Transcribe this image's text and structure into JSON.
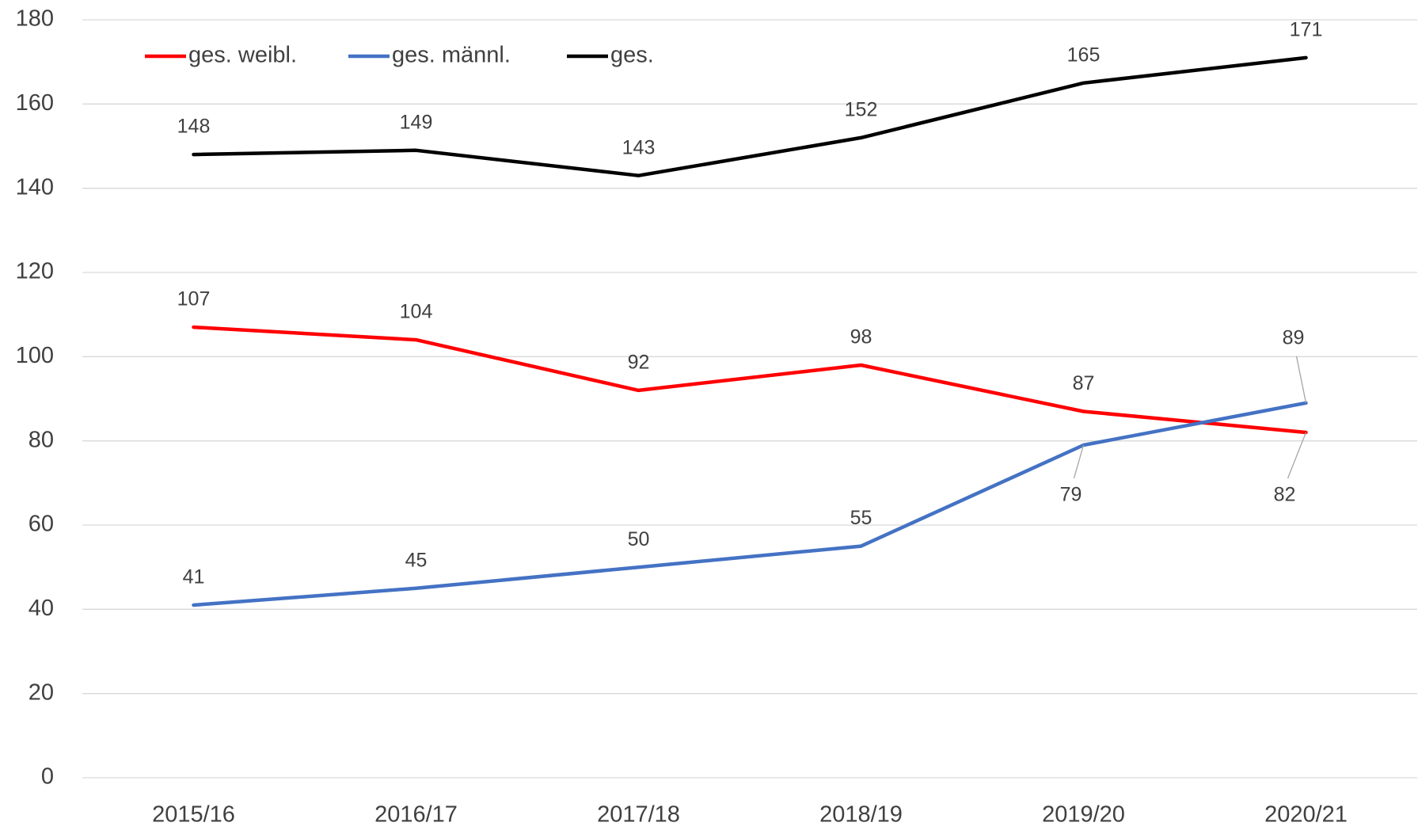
{
  "chart_data": {
    "type": "line",
    "categories": [
      "2015/16",
      "2016/17",
      "2017/18",
      "2018/19",
      "2019/20",
      "2020/21"
    ],
    "series": [
      {
        "name": "ges. weibl.",
        "color": "#ff0000",
        "values": [
          107,
          104,
          92,
          98,
          87,
          82
        ]
      },
      {
        "name": "ges. männl.",
        "color": "#4472c4",
        "values": [
          41,
          45,
          50,
          55,
          79,
          89
        ]
      },
      {
        "name": "ges.",
        "color": "#000000",
        "values": [
          148,
          149,
          143,
          152,
          165,
          171
        ]
      }
    ],
    "ylim": [
      0,
      180
    ],
    "yticks": [
      0,
      20,
      40,
      60,
      80,
      100,
      120,
      140,
      160,
      180
    ],
    "grid": true,
    "legend": "top-left"
  }
}
